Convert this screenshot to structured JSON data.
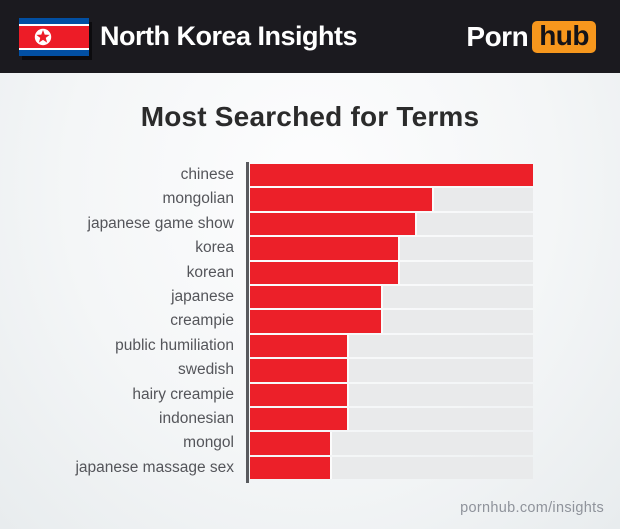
{
  "header": {
    "title": "North Korea Insights",
    "flag_icon": "north-korea-flag",
    "logo": {
      "part1": "Porn",
      "part2": "hub"
    }
  },
  "main": {
    "title": "Most Searched for Terms",
    "footer": "pornhub.com/insights"
  },
  "chart_data": {
    "type": "bar",
    "orientation": "horizontal",
    "title": "Most Searched for Terms",
    "categories": [
      "chinese",
      "mongolian",
      "japanese game show",
      "korea",
      "korean",
      "japanese",
      "creampie",
      "public humiliation",
      "swedish",
      "hairy creampie",
      "indonesian",
      "mongol",
      "japanese massage sex"
    ],
    "values": [
      100,
      65,
      59,
      53,
      53,
      47,
      47,
      35,
      35,
      35,
      35,
      29,
      29
    ],
    "value_note": "relative bar length, % of longest bar; no numeric axis labels shown",
    "xlabel": "",
    "ylabel": "",
    "grid": false,
    "legend": false,
    "bar_color": "#ec2029",
    "track_color": "#e9eaeb",
    "axis_color": "#595a5e"
  },
  "colors": {
    "header_bg": "#1b1a1f",
    "accent_red": "#ec2029",
    "logo_orange": "#f7971d",
    "title_text": "#2b2b2b",
    "label_text": "#54555a",
    "footer_text": "#8f939b"
  }
}
